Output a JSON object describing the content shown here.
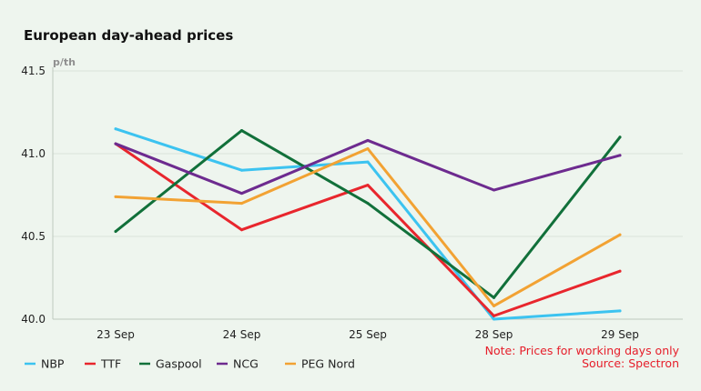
{
  "chart_data": {
    "type": "line",
    "title": "European day-ahead prices",
    "ylabel": "p/th",
    "xlabel": "",
    "categories": [
      "23 Sep",
      "24 Sep",
      "25 Sep",
      "28 Sep",
      "29 Sep"
    ],
    "ylim": [
      40.0,
      41.5
    ],
    "yticks": [
      "40.0",
      "40.5",
      "41.0",
      "41.5"
    ],
    "grid": "horizontal",
    "legend": "bottom-left",
    "series": [
      {
        "name": "NBP",
        "color": "#3cc3f0",
        "values": [
          41.15,
          40.9,
          40.95,
          40.0,
          40.05
        ]
      },
      {
        "name": "TTF",
        "color": "#e8262d",
        "values": [
          41.06,
          40.54,
          40.81,
          40.02,
          40.29
        ]
      },
      {
        "name": "Gaspool",
        "color": "#11703a",
        "values": [
          40.53,
          41.14,
          40.7,
          40.13,
          41.1
        ]
      },
      {
        "name": "NCG",
        "color": "#6d2b8f",
        "values": [
          41.06,
          40.76,
          41.08,
          40.78,
          40.99
        ]
      },
      {
        "name": "PEG Nord",
        "color": "#f2a233",
        "values": [
          40.74,
          40.7,
          41.03,
          40.08,
          40.51
        ]
      }
    ],
    "note": "Note: Prices for working days only",
    "source": "Source: Spectron"
  }
}
